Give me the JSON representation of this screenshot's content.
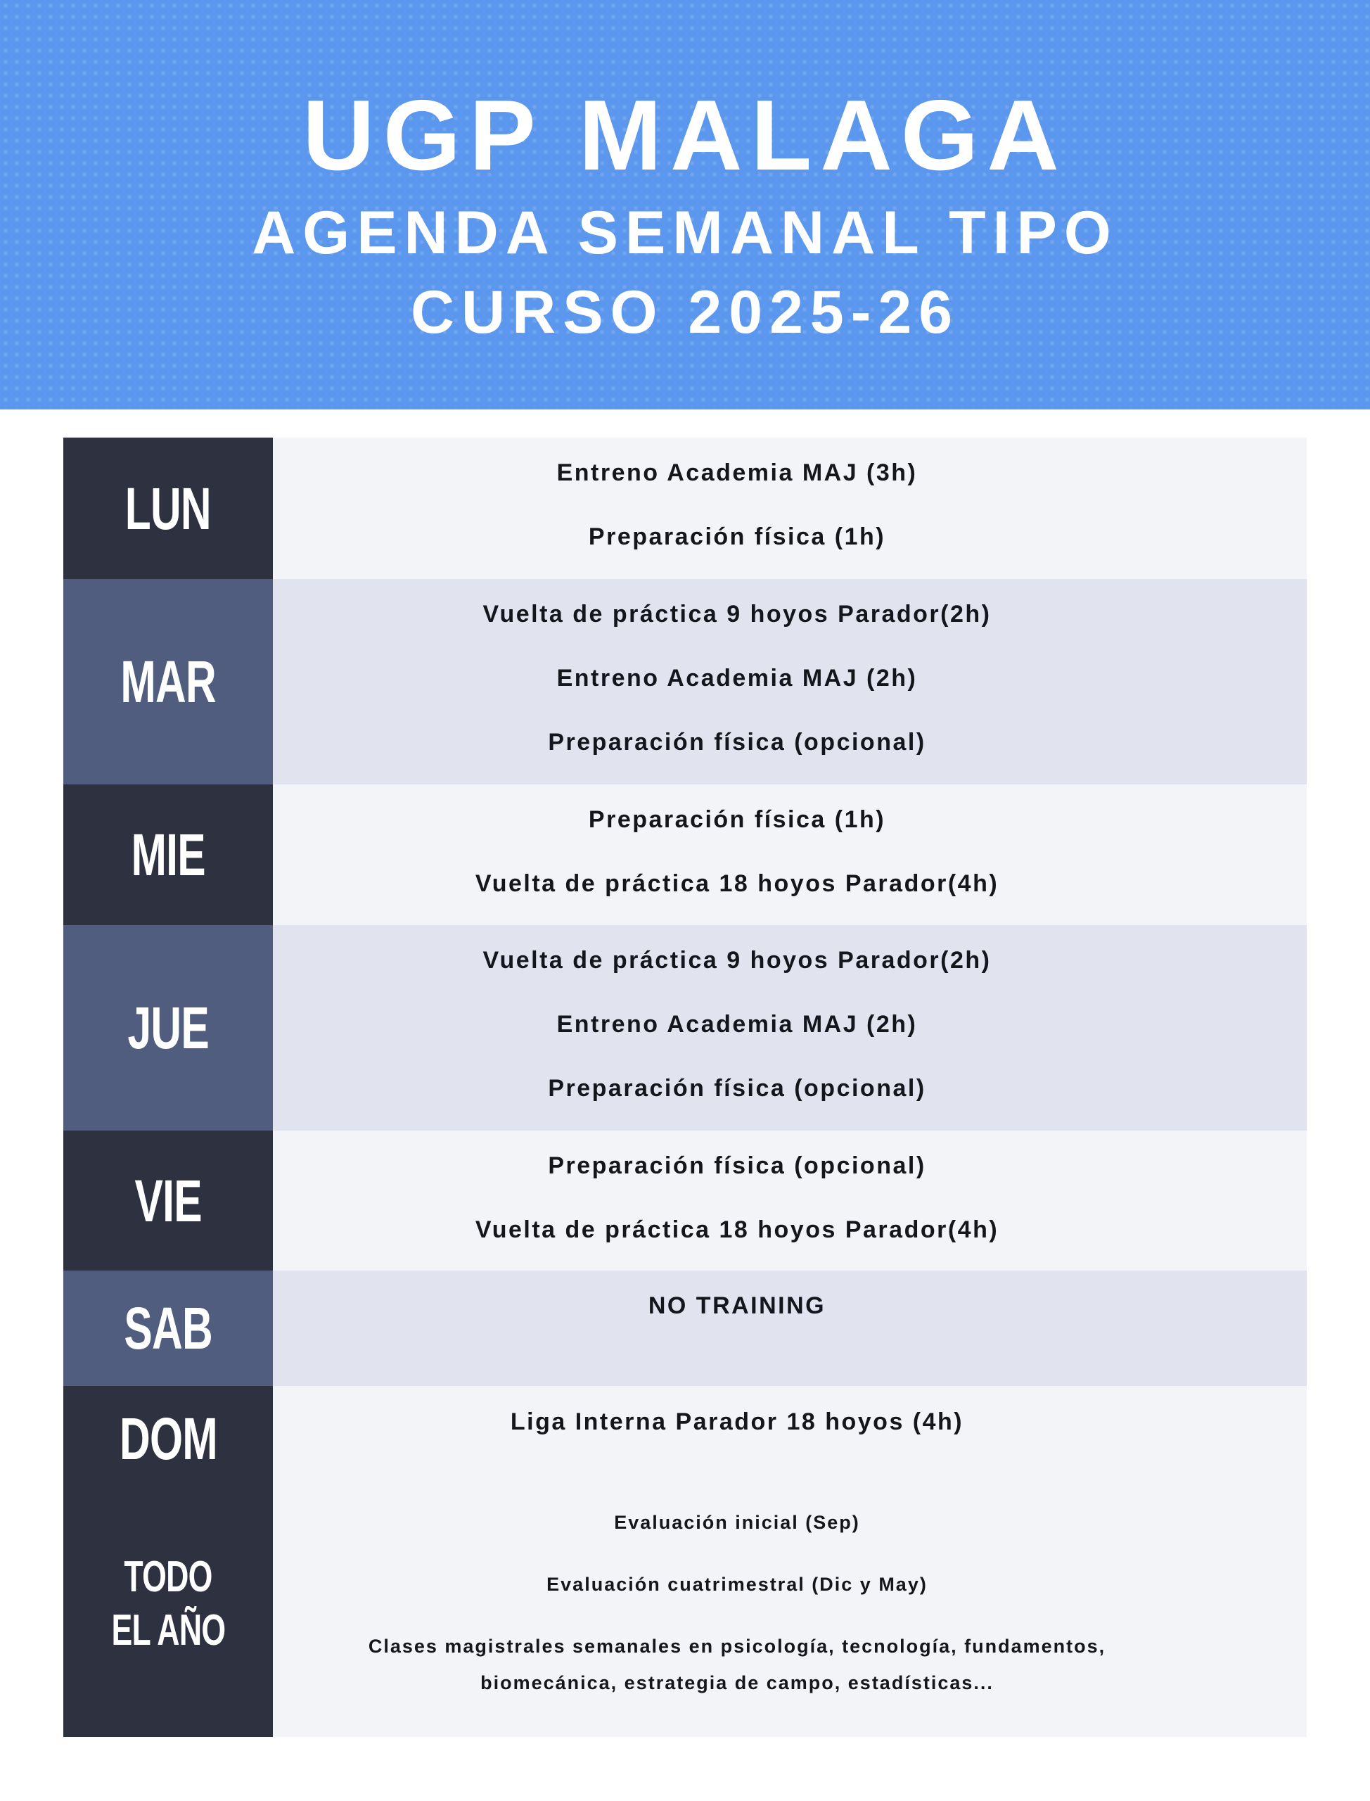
{
  "header": {
    "title": "UGP MALAGA",
    "subtitle_line1": "AGENDA SEMANAL TIPO",
    "subtitle_line2": "CURSO 2025-26"
  },
  "colors": {
    "header_blue": "#5c97ee",
    "day_dark": "#2d3140",
    "day_slate": "#505d7f",
    "row_light": "#f3f4f8",
    "row_alt": "#e1e4ef"
  },
  "schedule": [
    {
      "day": "LUN",
      "items": [
        "Entreno Academia MAJ (3h)",
        "Preparación física (1h)"
      ]
    },
    {
      "day": "MAR",
      "items": [
        "Vuelta de práctica 9 hoyos Parador(2h)",
        "Entreno Academia MAJ (2h)",
        "Preparación física (opcional)"
      ]
    },
    {
      "day": "MIE",
      "items": [
        "Preparación física (1h)",
        "Vuelta de práctica 18 hoyos Parador(4h)"
      ]
    },
    {
      "day": "JUE",
      "items": [
        "Vuelta de práctica 9 hoyos Parador(2h)",
        "Entreno Academia MAJ (2h)",
        "Preparación física (opcional)"
      ]
    },
    {
      "day": "VIE",
      "items": [
        "Preparación física (opcional)",
        "Vuelta de práctica 18 hoyos Parador(4h)"
      ]
    },
    {
      "day": "SAB",
      "items": [
        "NO TRAINING"
      ]
    },
    {
      "day": "DOM",
      "items": [
        "Liga Interna Parador 18 hoyos (4h)"
      ]
    },
    {
      "day_line1": "TODO",
      "day_line2": "EL AÑO",
      "items": [
        "Evaluación inicial (Sep)",
        "Evaluación cuatrimestral (Dic y May)",
        "Clases magistrales semanales en psicología, tecnología, fundamentos,",
        "biomecánica, estrategia de campo, estadísticas..."
      ]
    }
  ]
}
